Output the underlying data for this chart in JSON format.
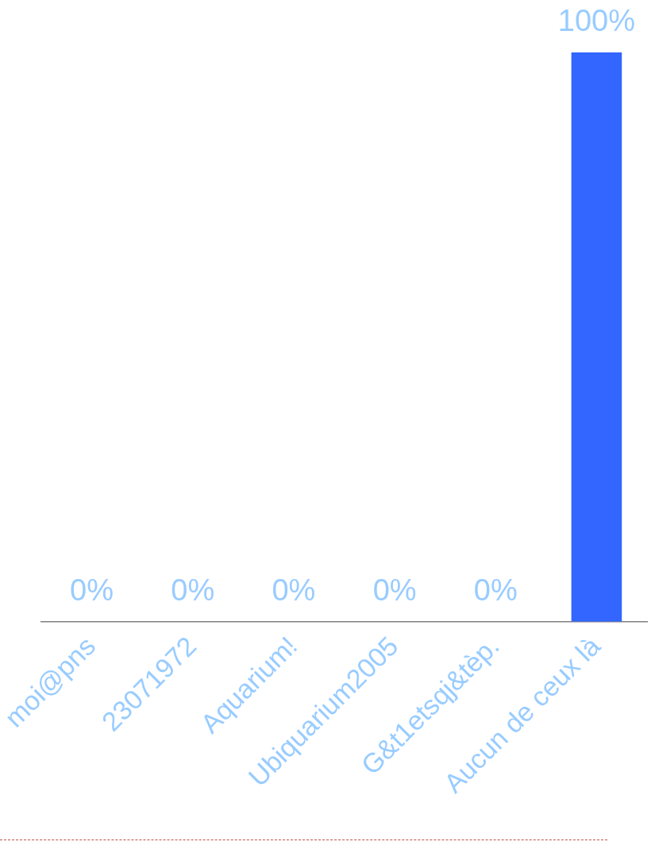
{
  "chart_data": {
    "type": "bar",
    "categories": [
      "moi@pns",
      "23071972",
      "Aquarium!",
      "Ubiquarium2005",
      "G&t1etsqj&tèp.",
      "Aucun de ceux là"
    ],
    "values": [
      0,
      0,
      0,
      0,
      0,
      100
    ],
    "colors": [
      "#ff0000",
      "#ff9900",
      "#ffff00",
      "#99cc00",
      "#339966",
      "#3366ff"
    ],
    "value_labels": [
      "0%",
      "0%",
      "0%",
      "0%",
      "0%",
      "100%"
    ],
    "tick_labels": "x"
  }
}
